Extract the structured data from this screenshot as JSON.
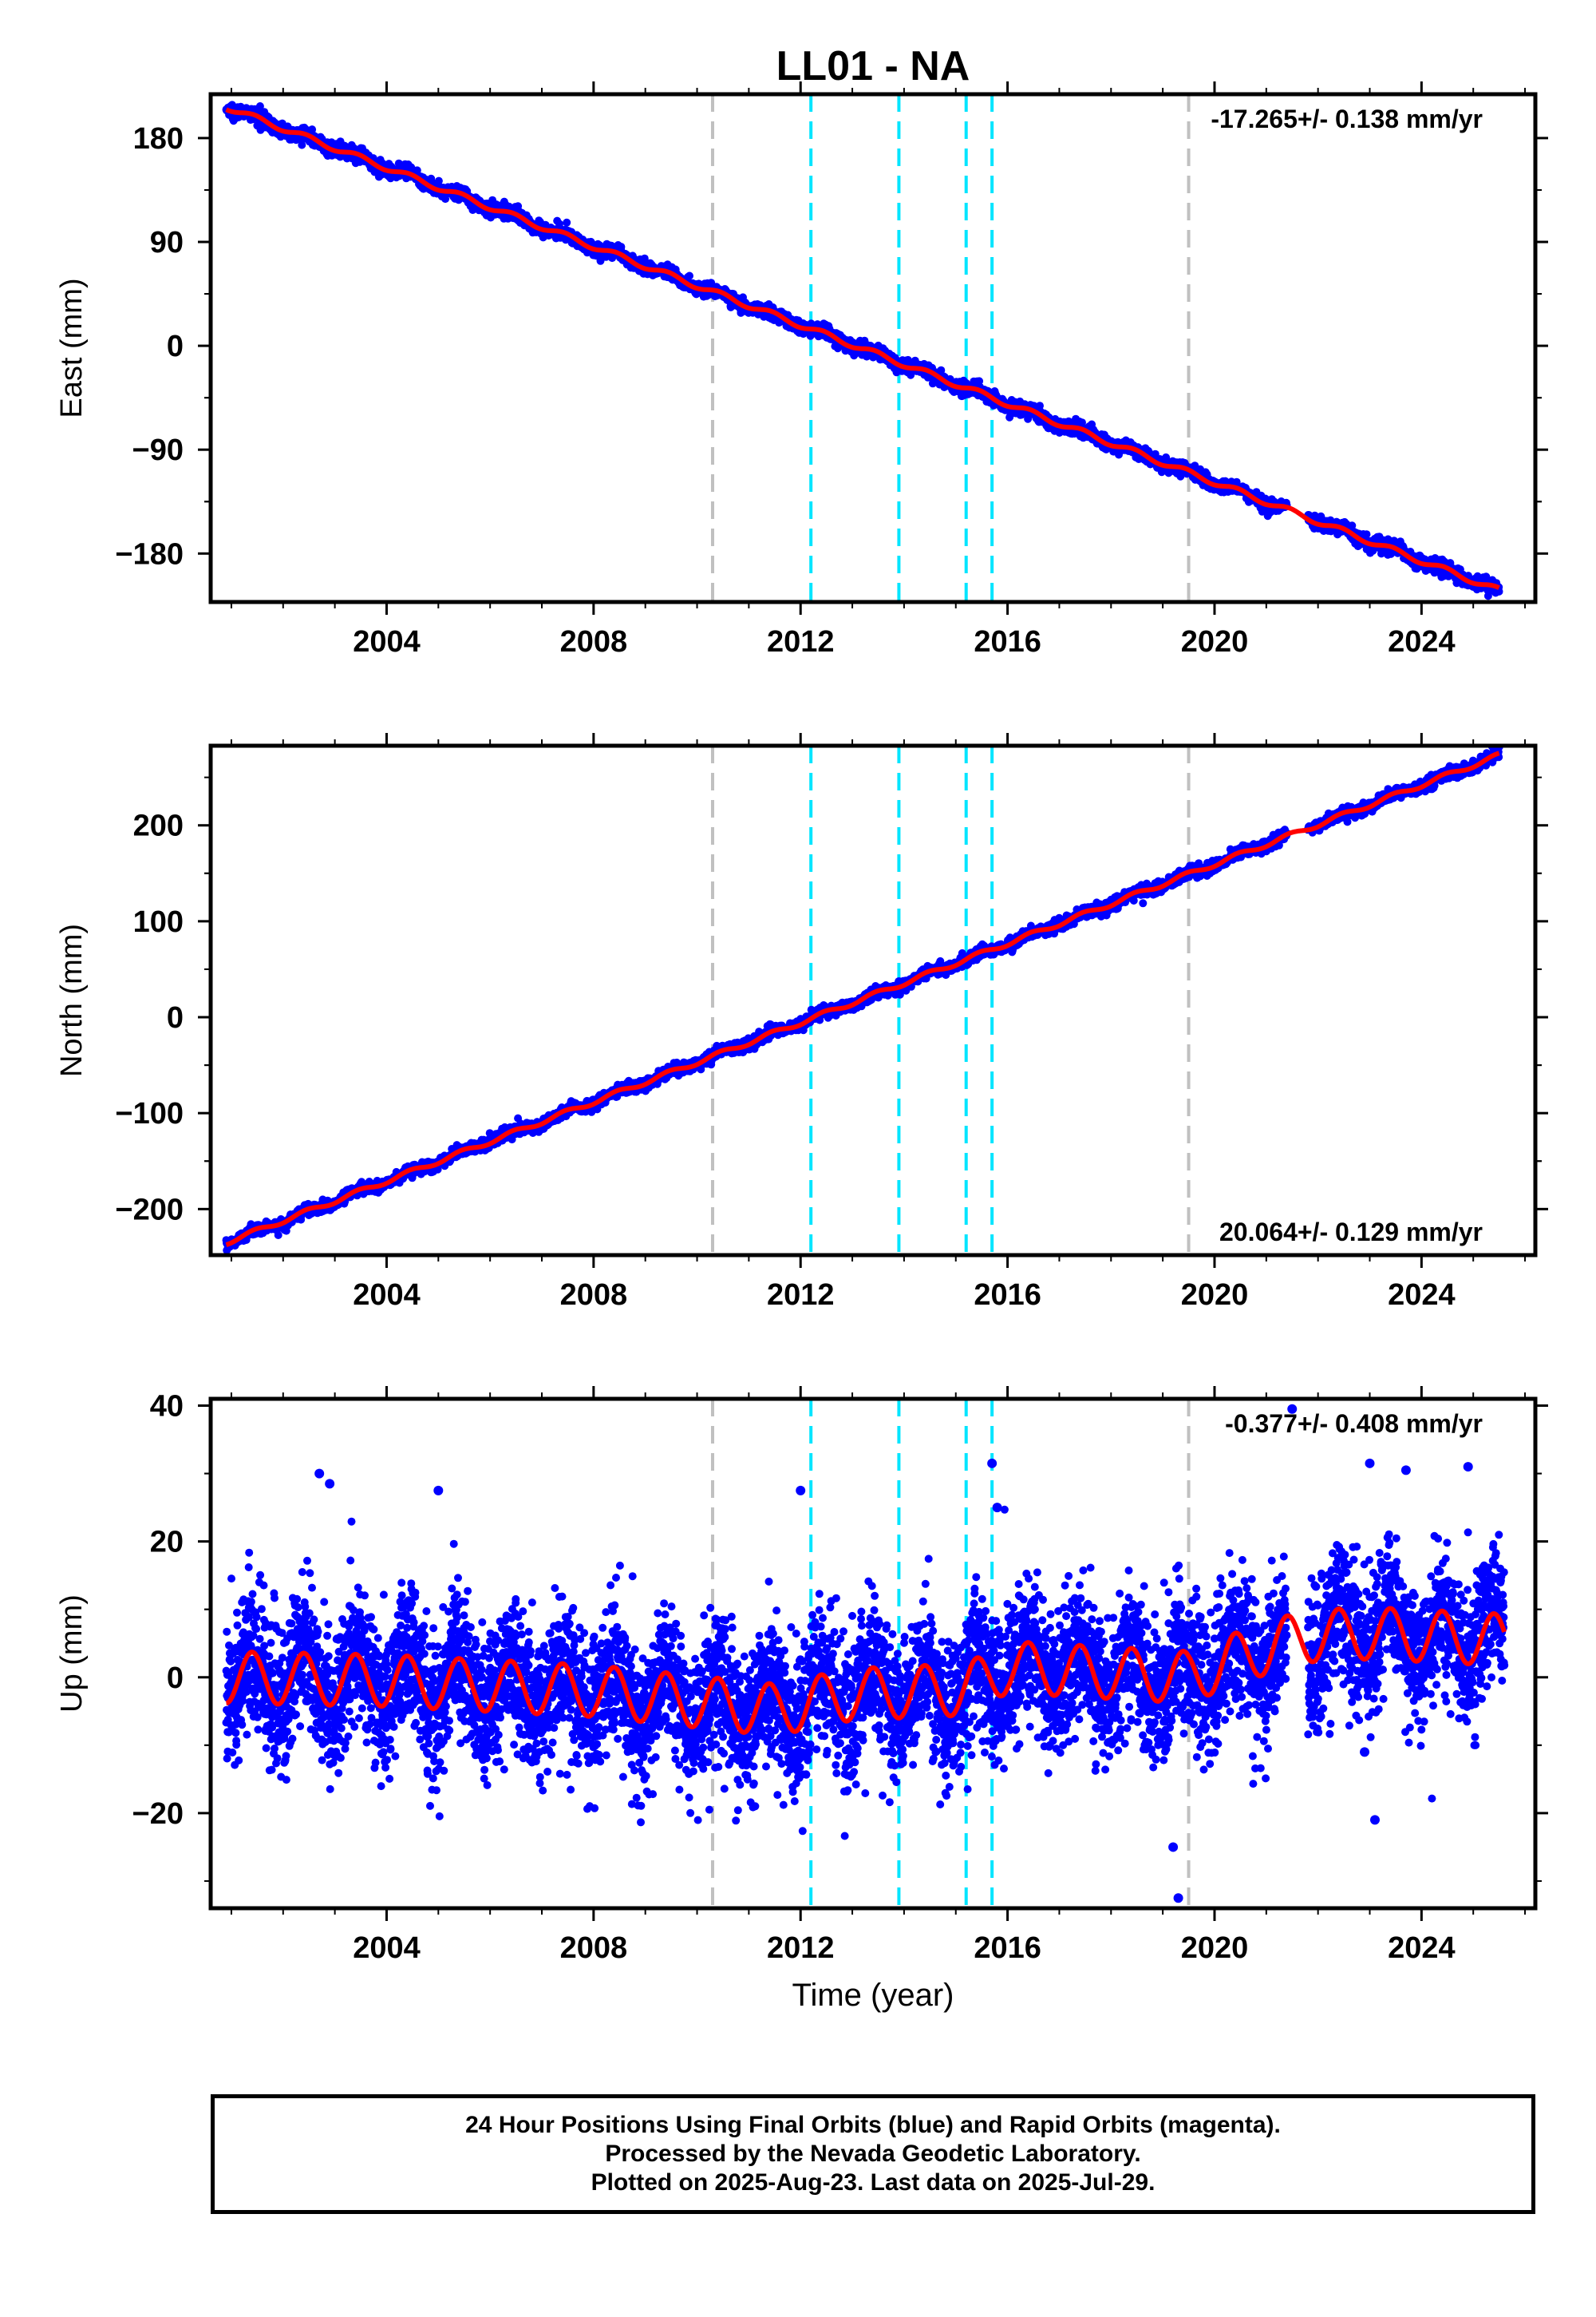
{
  "title": "LL01 - NA",
  "xlabel": "Time (year)",
  "colors": {
    "data": "#0000ff",
    "model": "#ff0000",
    "gray_line": "#c0c0c0",
    "cyan_line": "#00e5ff",
    "frame": "#000000"
  },
  "notes": [
    "24 Hour Positions Using Final Orbits (blue) and Rapid Orbits (magenta).",
    "Processed by the Nevada Geodetic Laboratory.",
    "Plotted on 2025-Aug-23. Last data on 2025-Jul-29."
  ],
  "chart_data": [
    {
      "type": "scatter",
      "component": "east",
      "ylabel": "East (mm)",
      "xlim": [
        2000.6,
        2026.2
      ],
      "ylim": [
        -222,
        218
      ],
      "xticks": [
        2004,
        2008,
        2012,
        2016,
        2020,
        2024
      ],
      "yticks": [
        -180,
        -90,
        0,
        90,
        180
      ],
      "ytick_labels": [
        "−180",
        "−90",
        "0",
        "90",
        "180"
      ],
      "rate_label": "-17.265+/- 0.138 mm/yr",
      "rate_position": "top-right",
      "gray_lines": [
        2010.3,
        2019.5
      ],
      "cyan_lines": [
        2012.2,
        2013.9,
        2015.2,
        2015.7
      ],
      "series": [
        {
          "kind": "points",
          "start": [
            2000.9,
            207.0
          ],
          "end": [
            2025.5,
            -212.0
          ],
          "noise": 3.0
        },
        {
          "kind": "model",
          "start": [
            2000.9,
            207.0
          ],
          "end": [
            2025.5,
            -212.0
          ]
        }
      ]
    },
    {
      "type": "scatter",
      "component": "north",
      "ylabel": "North (mm)",
      "xlim": [
        2000.6,
        2026.2
      ],
      "ylim": [
        -248,
        283
      ],
      "xticks": [
        2004,
        2008,
        2012,
        2016,
        2020,
        2024
      ],
      "yticks": [
        -200,
        -100,
        0,
        100,
        200
      ],
      "ytick_labels": [
        "−200",
        "−100",
        "0",
        "100",
        "200"
      ],
      "rate_label": "20.064+/- 0.129 mm/yr",
      "rate_position": "bottom-right",
      "gray_lines": [
        2010.3,
        2019.5
      ],
      "cyan_lines": [
        2012.2,
        2013.9,
        2015.2,
        2015.7
      ],
      "series": [
        {
          "kind": "points",
          "start": [
            2000.9,
            -235.0
          ],
          "end": [
            2025.5,
            273.0
          ],
          "noise": 3.0,
          "offset_at": 2019.5,
          "offset": 8.0
        },
        {
          "kind": "model",
          "start": [
            2000.9,
            -235.0
          ],
          "end": [
            2025.5,
            273.0
          ],
          "offset_at": 2019.5,
          "offset": 8.0
        }
      ]
    },
    {
      "type": "scatter",
      "component": "up",
      "ylabel": "Up (mm)",
      "xlim": [
        2000.6,
        2026.2
      ],
      "ylim": [
        -34,
        41
      ],
      "xticks": [
        2004,
        2008,
        2012,
        2016,
        2020,
        2024
      ],
      "yticks": [
        -20,
        0,
        20,
        40
      ],
      "ytick_labels": [
        "−20",
        "0",
        "20",
        "40"
      ],
      "rate_label": "-0.377+/- 0.408 mm/yr",
      "rate_position": "top-right",
      "gray_lines": [
        2010.3,
        2019.5
      ],
      "cyan_lines": [
        2012.2,
        2013.9,
        2015.2,
        2015.7
      ],
      "series": [
        {
          "kind": "points",
          "x_range": [
            2000.9,
            2025.6
          ],
          "noise": 5.0
        },
        {
          "kind": "model",
          "x_range": [
            2000.9,
            2025.6
          ],
          "annual_amplitude": 3.8,
          "trend_knots": [
            [
              2000.9,
              0.0
            ],
            [
              2004.0,
              -0.5
            ],
            [
              2008.0,
              -2.0
            ],
            [
              2011.5,
              -4.8
            ],
            [
              2013.0,
              -2.5
            ],
            [
              2015.2,
              -1.8
            ],
            [
              2016.0,
              1.5
            ],
            [
              2019.5,
              0.0
            ],
            [
              2020.5,
              3.0
            ],
            [
              2021.7,
              6.0
            ],
            [
              2023.0,
              6.5
            ],
            [
              2025.6,
              5.5
            ]
          ]
        }
      ],
      "outliers": [
        [
          2002.7,
          30.0
        ],
        [
          2002.9,
          28.5
        ],
        [
          2005.0,
          27.5
        ],
        [
          2012.0,
          27.5
        ],
        [
          2015.7,
          31.5
        ],
        [
          2015.8,
          25.0
        ],
        [
          2021.5,
          39.5
        ],
        [
          2023.0,
          31.5
        ],
        [
          2023.7,
          30.5
        ],
        [
          2024.9,
          31.0
        ],
        [
          2022.9,
          -11.0
        ],
        [
          2023.1,
          -21.0
        ],
        [
          2019.2,
          -25.0
        ],
        [
          2019.3,
          -32.5
        ]
      ]
    }
  ]
}
